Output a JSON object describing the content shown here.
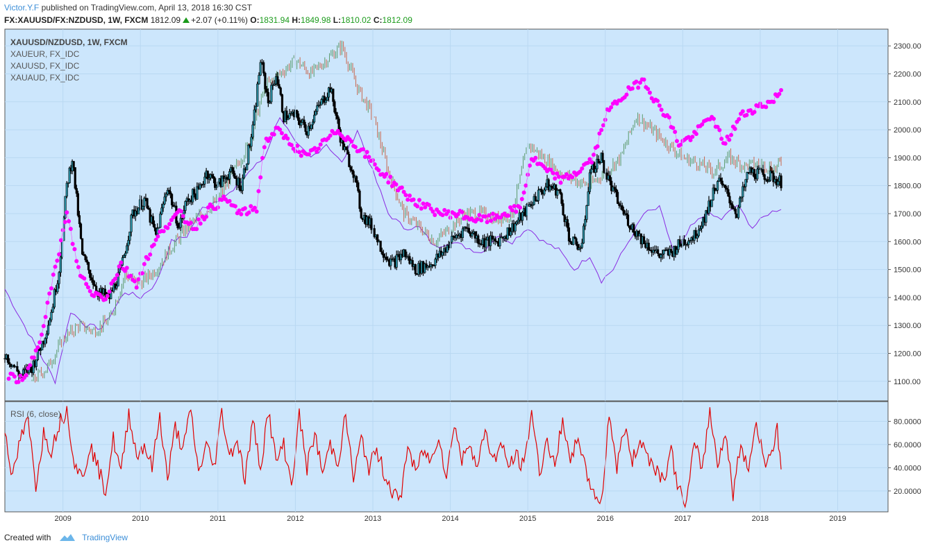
{
  "header": {
    "author": "Victor.Y.F",
    "published_text": "published on TradingView.com, April 13, 2018 16:30 CST",
    "symbol": "FX:XAUUSD/FX:NZDUSD, 1W, FXCM",
    "last_price": "1812.09",
    "change": "+2.07 (+0.11%)",
    "open_label": "O:",
    "open": "1831.94",
    "high_label": "H:",
    "high": "1849.98",
    "low_label": "L:",
    "low": "1810.02",
    "close_label": "C:",
    "close": "1812.09"
  },
  "legend": {
    "main": "XAUUSD/NZDUSD, 1W, FXCM",
    "series_1": "XAUEUR, FX_IDC",
    "series_2": "XAUUSD, FX_IDC",
    "series_3": "XAUAUD, FX_IDC"
  },
  "rsi": {
    "title": "RSI (6, close)"
  },
  "footer": {
    "created_with": "Created with",
    "brand": "TradingView"
  },
  "colors": {
    "pane_bg": "#cce6fc",
    "candle_main": "#000000",
    "candle_main_body": "#2a8fa3",
    "xaueur": "#ff00ff",
    "xauusd_up": "#5b9a6b",
    "xauusd_down": "#c8674d",
    "xauaud": "#8a2be2",
    "rsi": "#e00000"
  },
  "chart_data": [
    {
      "type": "line",
      "name": "price pane",
      "x_axis_ticks": [
        "2009",
        "2010",
        "2011",
        "2012",
        "2013",
        "2014",
        "2015",
        "2016",
        "2017",
        "2018",
        "2019"
      ],
      "y_axis_ticks": [
        "1100.00",
        "1200.00",
        "1300.00",
        "1400.00",
        "1500.00",
        "1600.00",
        "1700.00",
        "1800.00",
        "1900.00",
        "2000.00",
        "2100.00",
        "2200.00",
        "2300.00"
      ],
      "ylim": [
        1030,
        2360
      ],
      "xlim": [
        2008.25,
        2019.65
      ],
      "series": [
        {
          "name": "XAUUSD/NZDUSD, 1W, FXCM",
          "style": "candles",
          "x": [
            2008.25,
            2008.45,
            2008.6,
            2008.75,
            2008.85,
            2008.95,
            2009.05,
            2009.12,
            2009.25,
            2009.45,
            2009.6,
            2009.75,
            2009.9,
            2010.05,
            2010.2,
            2010.35,
            2010.5,
            2010.6,
            2010.75,
            2010.85,
            2011.0,
            2011.15,
            2011.3,
            2011.45,
            2011.55,
            2011.65,
            2011.75,
            2011.85,
            2012.0,
            2012.15,
            2012.3,
            2012.45,
            2012.6,
            2012.75,
            2012.85,
            2013.0,
            2013.1,
            2013.25,
            2013.4,
            2013.55,
            2013.75,
            2013.9,
            2014.0,
            2014.2,
            2014.4,
            2014.6,
            2014.8,
            2014.95,
            2015.1,
            2015.25,
            2015.4,
            2015.55,
            2015.7,
            2015.8,
            2015.95,
            2016.0,
            2016.1,
            2016.2,
            2016.35,
            2016.5,
            2016.7,
            2016.85,
            2017.0,
            2017.15,
            2017.3,
            2017.45,
            2017.55,
            2017.7,
            2017.85,
            2018.0,
            2018.15,
            2018.27
          ],
          "y": [
            1200,
            1120,
            1150,
            1250,
            1350,
            1500,
            1800,
            1900,
            1550,
            1420,
            1400,
            1500,
            1700,
            1750,
            1620,
            1800,
            1650,
            1750,
            1780,
            1850,
            1800,
            1850,
            1800,
            2000,
            2250,
            2100,
            2200,
            2050,
            2050,
            2000,
            2080,
            2150,
            1950,
            1850,
            1700,
            1650,
            1580,
            1520,
            1560,
            1500,
            1520,
            1560,
            1600,
            1650,
            1600,
            1600,
            1650,
            1700,
            1760,
            1800,
            1780,
            1600,
            1580,
            1850,
            1900,
            1850,
            1780,
            1720,
            1650,
            1600,
            1550,
            1560,
            1600,
            1620,
            1700,
            1820,
            1780,
            1700,
            1850,
            1840,
            1830,
            1812
          ]
        },
        {
          "name": "XAUEUR, FX_IDC",
          "style": "dots",
          "x": [
            2008.3,
            2008.5,
            2008.7,
            2008.9,
            2009.05,
            2009.2,
            2009.35,
            2009.55,
            2009.75,
            2009.95,
            2010.1,
            2010.3,
            2010.5,
            2010.7,
            2010.9,
            2011.1,
            2011.3,
            2011.5,
            2011.6,
            2011.75,
            2011.95,
            2012.15,
            2012.35,
            2012.55,
            2012.75,
            2012.95,
            2013.1,
            2013.3,
            2013.5,
            2013.7,
            2013.9,
            2014.1,
            2014.3,
            2014.5,
            2014.7,
            2014.9,
            2015.05,
            2015.25,
            2015.45,
            2015.65,
            2015.85,
            2016.0,
            2016.15,
            2016.35,
            2016.5,
            2016.65,
            2016.8,
            2016.95,
            2017.15,
            2017.35,
            2017.55,
            2017.75,
            2017.95,
            2018.15,
            2018.27
          ],
          "y": [
            1120,
            1100,
            1250,
            1500,
            1700,
            1500,
            1420,
            1400,
            1520,
            1450,
            1550,
            1650,
            1700,
            1650,
            1720,
            1750,
            1700,
            1720,
            1950,
            2000,
            1950,
            1900,
            1950,
            2000,
            1950,
            1900,
            1850,
            1800,
            1750,
            1720,
            1700,
            1700,
            1680,
            1680,
            1700,
            1720,
            1900,
            1850,
            1820,
            1850,
            1900,
            2050,
            2100,
            2150,
            2180,
            2100,
            2050,
            1950,
            1980,
            2050,
            1950,
            2050,
            2080,
            2100,
            2140
          ]
        },
        {
          "name": "XAUUSD, FX_IDC",
          "style": "ohlc",
          "x": [
            2008.6,
            2008.8,
            2009.0,
            2009.2,
            2009.4,
            2009.6,
            2009.8,
            2010.0,
            2010.2,
            2010.4,
            2010.6,
            2010.8,
            2011.0,
            2011.2,
            2011.4,
            2011.6,
            2011.8,
            2012.0,
            2012.2,
            2012.4,
            2012.6,
            2012.8,
            2013.0,
            2013.2,
            2013.4,
            2013.6,
            2013.8,
            2014.0,
            2014.2,
            2014.4,
            2014.6,
            2014.8,
            2015.0,
            2015.2,
            2015.4,
            2015.6,
            2015.8,
            2016.0,
            2016.2,
            2016.4,
            2016.6,
            2016.8,
            2017.0,
            2017.2,
            2017.4,
            2017.6,
            2017.8,
            2018.0,
            2018.2,
            2018.27
          ],
          "y": [
            1100,
            1150,
            1250,
            1300,
            1280,
            1320,
            1480,
            1450,
            1500,
            1580,
            1650,
            1700,
            1750,
            1850,
            1950,
            2150,
            2200,
            2250,
            2200,
            2250,
            2300,
            2150,
            2050,
            1850,
            1700,
            1650,
            1600,
            1650,
            1700,
            1700,
            1680,
            1700,
            1950,
            1900,
            1850,
            1820,
            1800,
            1850,
            1900,
            2050,
            2000,
            1950,
            1900,
            1880,
            1850,
            1900,
            1870,
            1880,
            1860,
            1890
          ]
        },
        {
          "name": "XAUAUD, FX_IDC",
          "style": "line",
          "x": [
            2008.25,
            2008.5,
            2008.7,
            2008.9,
            2009.1,
            2009.3,
            2009.5,
            2009.8,
            2010.0,
            2010.2,
            2010.4,
            2010.6,
            2010.8,
            2011.0,
            2011.2,
            2011.4,
            2011.6,
            2011.8,
            2012.0,
            2012.2,
            2012.4,
            2012.6,
            2012.8,
            2013.0,
            2013.2,
            2013.4,
            2013.6,
            2013.8,
            2014.0,
            2014.2,
            2014.4,
            2014.6,
            2014.8,
            2015.0,
            2015.2,
            2015.4,
            2015.6,
            2015.8,
            2015.95,
            2016.1,
            2016.3,
            2016.5,
            2016.7,
            2016.9,
            2017.1,
            2017.3,
            2017.5,
            2017.7,
            2017.9,
            2018.1,
            2018.27
          ],
          "y": [
            1430,
            1300,
            1200,
            1100,
            1350,
            1300,
            1290,
            1420,
            1400,
            1450,
            1600,
            1620,
            1720,
            1750,
            1780,
            1850,
            1900,
            2050,
            1950,
            1900,
            1950,
            1880,
            2000,
            1850,
            1700,
            1650,
            1650,
            1580,
            1600,
            1580,
            1560,
            1620,
            1600,
            1650,
            1600,
            1570,
            1500,
            1550,
            1460,
            1500,
            1600,
            1700,
            1720,
            1550,
            1650,
            1700,
            1680,
            1730,
            1650,
            1700,
            1720
          ]
        }
      ]
    },
    {
      "type": "line",
      "name": "RSI (6, close)",
      "y_axis_ticks": [
        "20.0000",
        "40.0000",
        "60.0000",
        "80.0000"
      ],
      "ylim": [
        2,
        97
      ],
      "xlim": [
        2008.25,
        2019.65
      ],
      "series": [
        {
          "name": "RSI (6, close)",
          "x": [
            2008.25,
            2008.35,
            2008.45,
            2008.55,
            2008.65,
            2008.75,
            2008.85,
            2008.95,
            2009.05,
            2009.15,
            2009.25,
            2009.35,
            2009.45,
            2009.55,
            2009.65,
            2009.75,
            2009.85,
            2009.95,
            2010.05,
            2010.15,
            2010.25,
            2010.35,
            2010.45,
            2010.55,
            2010.65,
            2010.75,
            2010.85,
            2010.95,
            2011.05,
            2011.15,
            2011.25,
            2011.35,
            2011.45,
            2011.55,
            2011.65,
            2011.75,
            2011.85,
            2011.95,
            2012.05,
            2012.15,
            2012.25,
            2012.35,
            2012.45,
            2012.55,
            2012.65,
            2012.75,
            2012.85,
            2012.95,
            2013.05,
            2013.15,
            2013.25,
            2013.35,
            2013.45,
            2013.55,
            2013.65,
            2013.75,
            2013.85,
            2013.95,
            2014.05,
            2014.15,
            2014.25,
            2014.35,
            2014.45,
            2014.55,
            2014.65,
            2014.75,
            2014.85,
            2014.95,
            2015.05,
            2015.15,
            2015.25,
            2015.35,
            2015.45,
            2015.55,
            2015.65,
            2015.75,
            2015.85,
            2015.95,
            2016.05,
            2016.15,
            2016.25,
            2016.35,
            2016.45,
            2016.55,
            2016.65,
            2016.75,
            2016.85,
            2016.95,
            2017.05,
            2017.15,
            2017.25,
            2017.35,
            2017.45,
            2017.55,
            2017.65,
            2017.75,
            2017.85,
            2017.95,
            2018.05,
            2018.15,
            2018.22,
            2018.27
          ],
          "y": [
            75,
            30,
            65,
            80,
            25,
            70,
            55,
            78,
            90,
            45,
            30,
            60,
            40,
            20,
            65,
            35,
            88,
            50,
            60,
            40,
            85,
            30,
            75,
            55,
            90,
            35,
            60,
            40,
            88,
            50,
            65,
            30,
            80,
            40,
            90,
            45,
            60,
            25,
            85,
            40,
            70,
            35,
            60,
            45,
            85,
            30,
            65,
            40,
            55,
            35,
            20,
            10,
            60,
            35,
            55,
            45,
            70,
            30,
            80,
            45,
            65,
            38,
            75,
            45,
            60,
            42,
            50,
            40,
            90,
            35,
            65,
            38,
            85,
            40,
            70,
            35,
            20,
            8,
            88,
            40,
            75,
            45,
            65,
            50,
            40,
            30,
            55,
            20,
            10,
            60,
            40,
            88,
            45,
            70,
            18,
            60,
            40,
            80,
            45,
            55,
            72,
            40
          ]
        }
      ]
    }
  ]
}
